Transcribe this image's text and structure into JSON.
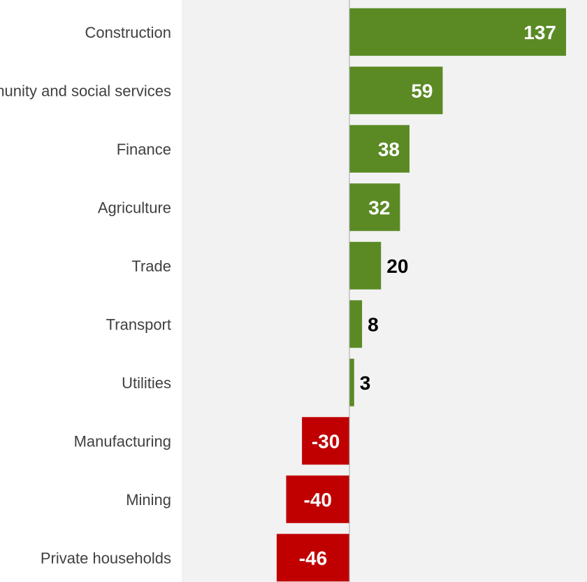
{
  "chart_data": {
    "type": "bar",
    "orientation": "horizontal",
    "title": "",
    "xlabel": "",
    "ylabel": "",
    "categories": [
      "Construction",
      "Community and social services",
      "Finance",
      "Agriculture",
      "Trade",
      "Transport",
      "Utilities",
      "Manufacturing",
      "Mining",
      "Private households"
    ],
    "values": [
      137,
      59,
      38,
      32,
      20,
      8,
      3,
      -30,
      -40,
      -46
    ],
    "value_labels": [
      "137",
      "59",
      "38",
      "32",
      "20",
      "8",
      "3",
      "-30",
      "-40",
      "-46"
    ],
    "xlim": [
      -48,
      150
    ],
    "grid": false,
    "legend": "none",
    "colors": {
      "positive": "#5b8a25",
      "negative": "#c00000",
      "plot_background": "#f2f2f2",
      "axis_line": "#a6a6a6",
      "label_inside": "#ffffff",
      "label_outside": "#000000",
      "category_text": "#404040"
    }
  }
}
